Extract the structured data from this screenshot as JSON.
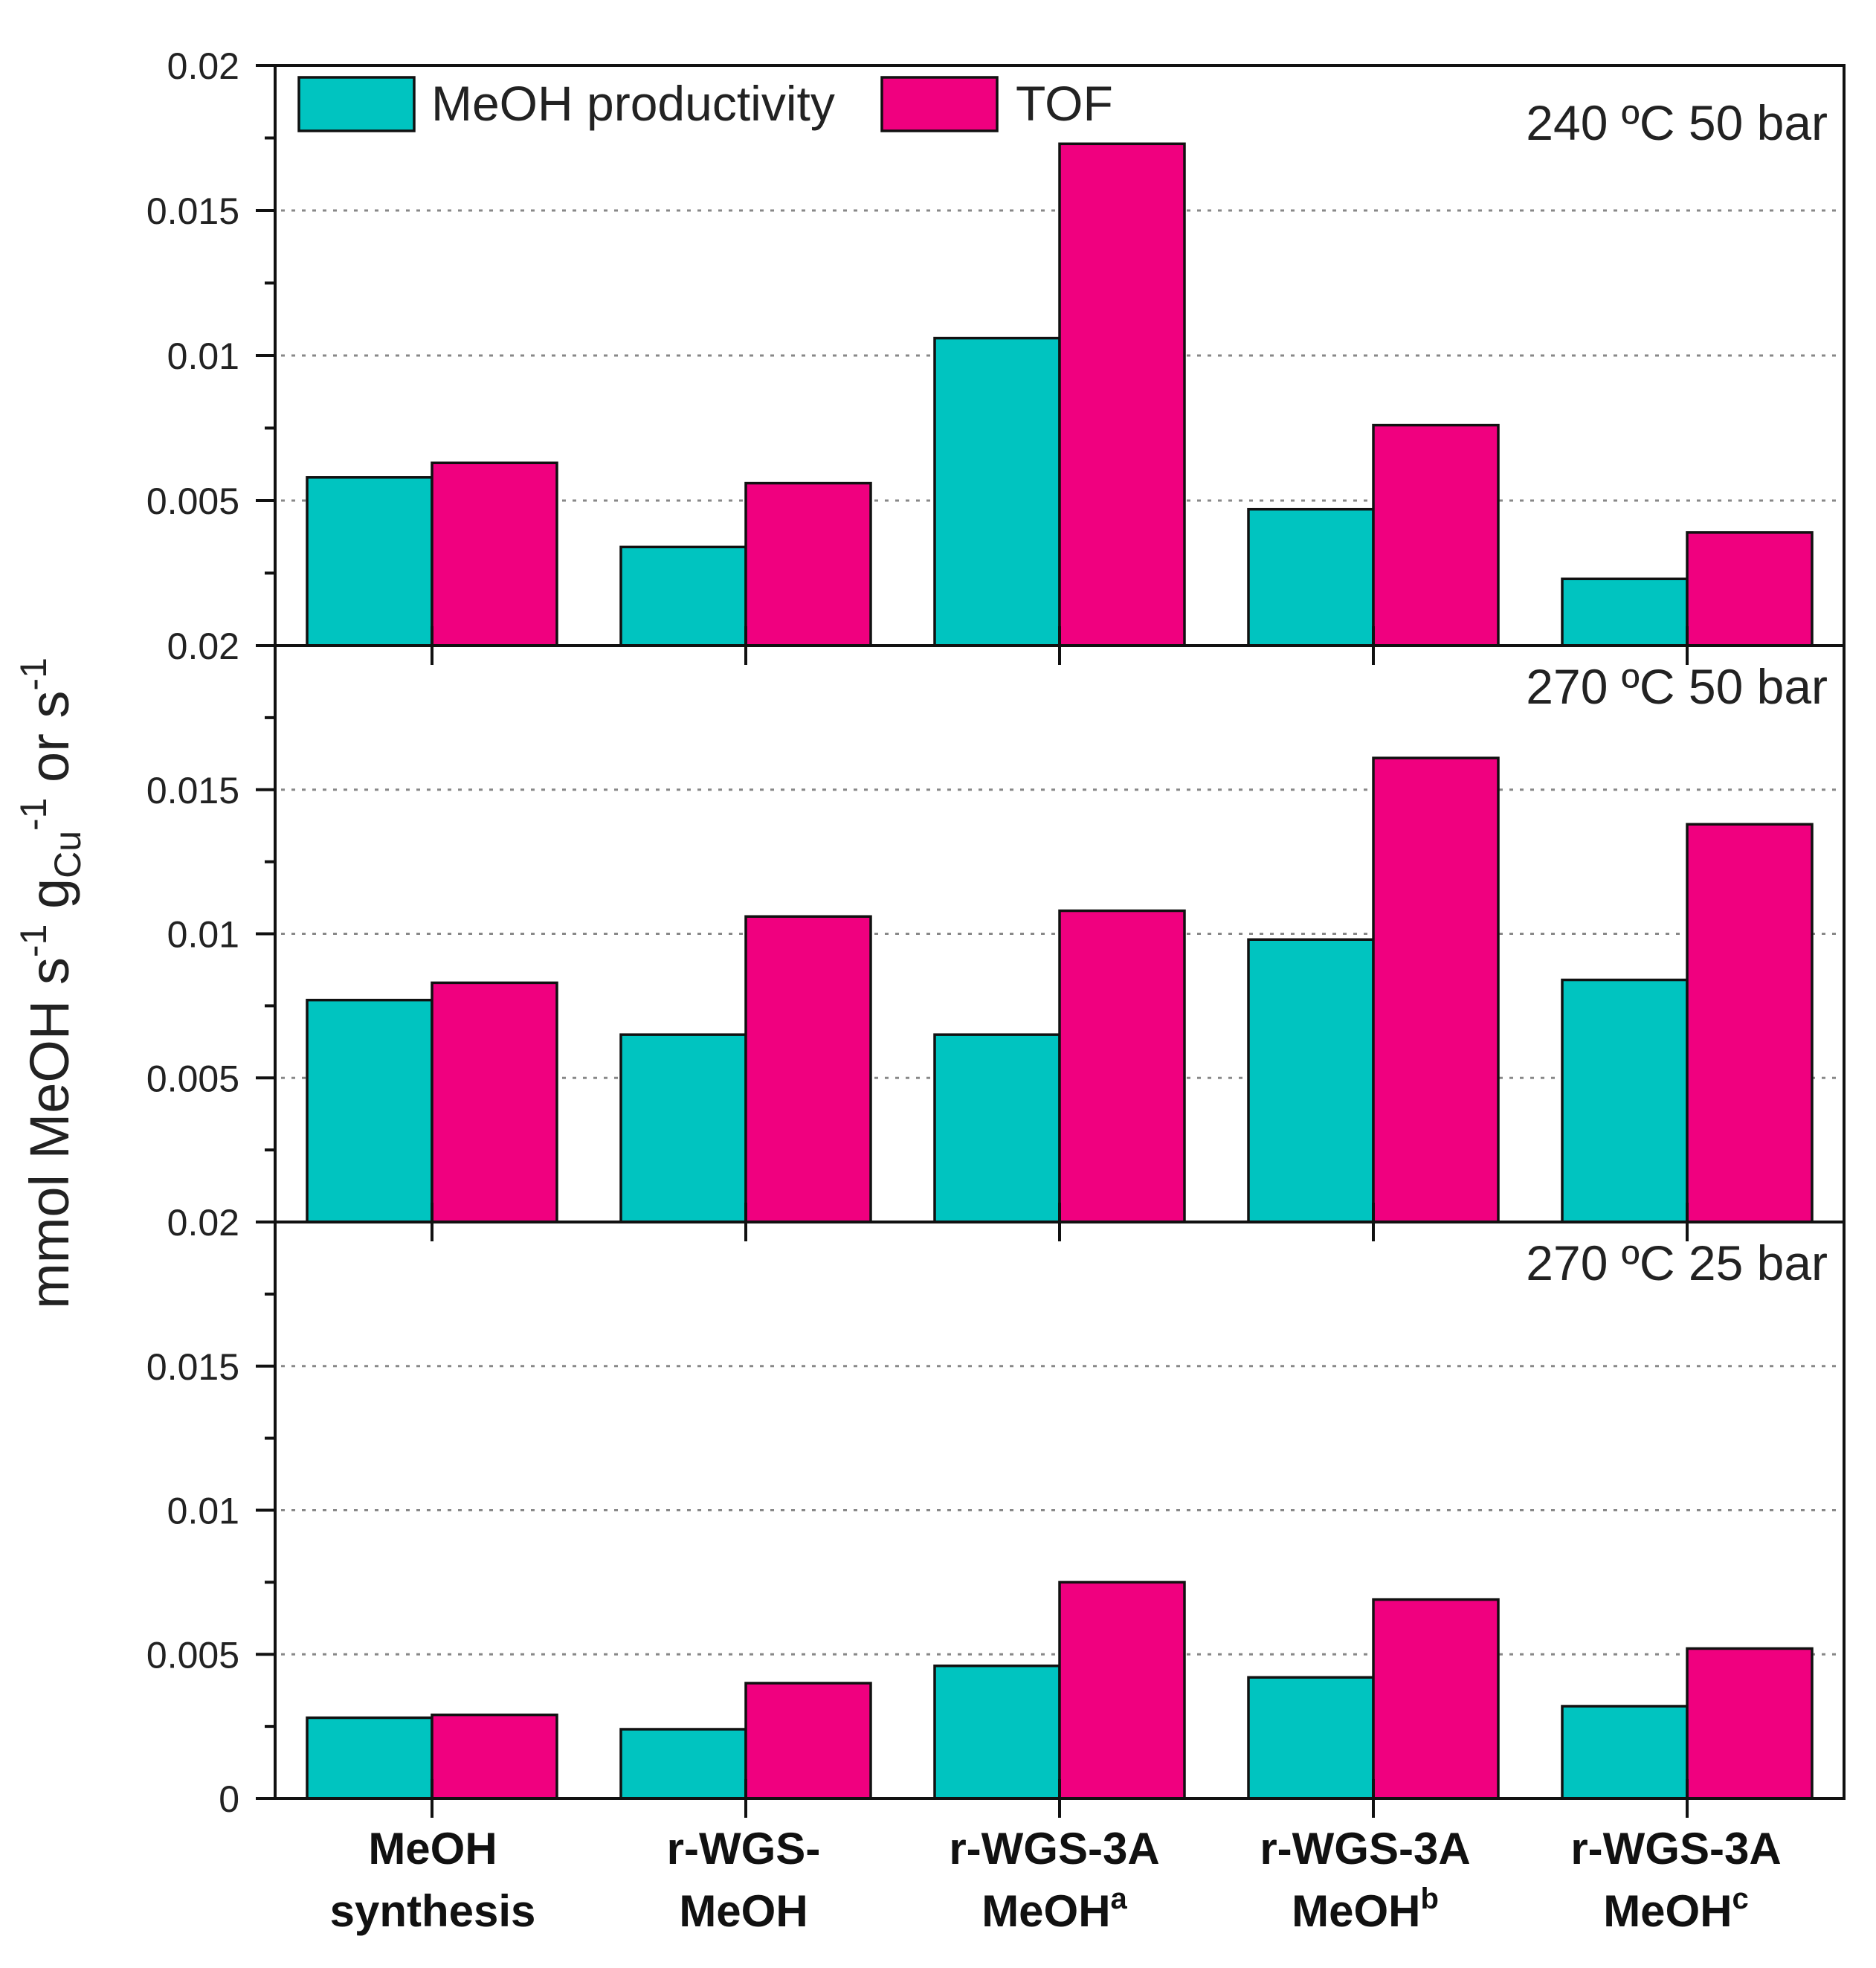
{
  "chart_data": {
    "type": "bar",
    "layout": "three stacked panels sharing x categories",
    "ylabel": {
      "prefix": "mmol MeOH s",
      "sup1": "-1",
      "g": " g",
      "sub": "Cu",
      "sup2": "-1",
      "suffix": " or s",
      "sup3": "-1"
    },
    "categories": [
      {
        "line1": "MeOH",
        "line2": "synthesis",
        "sup": ""
      },
      {
        "line1": "r-WGS-",
        "line2": "MeOH",
        "sup": ""
      },
      {
        "line1": "r-WGS-3A",
        "line2": "MeOH",
        "sup": "a"
      },
      {
        "line1": "r-WGS-3A",
        "line2": "MeOH",
        "sup": "b"
      },
      {
        "line1": "r-WGS-3A",
        "line2": "MeOH",
        "sup": "c"
      }
    ],
    "legend": {
      "position": "top-left",
      "entries": [
        {
          "name": "MeOH productivity",
          "color": "#00c4c0"
        },
        {
          "name": "TOF",
          "color": "#f0007f"
        }
      ]
    },
    "ylim": [
      0,
      0.02
    ],
    "yticks": [
      0,
      0.005,
      0.01,
      0.015,
      0.02
    ],
    "panels": [
      {
        "title": "240 ºC 50 bar",
        "tick_labels": [
          "0.02",
          "0.005",
          "0.01",
          "0.015",
          "0.02"
        ],
        "series": [
          {
            "name": "MeOH productivity",
            "values": [
              0.0058,
              0.0034,
              0.0106,
              0.0047,
              0.0023
            ]
          },
          {
            "name": "TOF",
            "values": [
              0.0063,
              0.0056,
              0.0173,
              0.0076,
              0.0039
            ]
          }
        ]
      },
      {
        "title": "270 ºC 50 bar",
        "tick_labels": [
          "0.02",
          "0.005",
          "0.01",
          "0.015",
          ""
        ],
        "series": [
          {
            "name": "MeOH productivity",
            "values": [
              0.0077,
              0.0065,
              0.0065,
              0.0098,
              0.0084
            ]
          },
          {
            "name": "TOF",
            "values": [
              0.0083,
              0.0106,
              0.0108,
              0.0161,
              0.0138
            ]
          }
        ]
      },
      {
        "title": "270 ºC 25 bar",
        "tick_labels": [
          "0",
          "0.005",
          "0.01",
          "0.015",
          ""
        ],
        "series": [
          {
            "name": "MeOH productivity",
            "values": [
              0.0028,
              0.0024,
              0.0046,
              0.0042,
              0.0032
            ]
          },
          {
            "name": "TOF",
            "values": [
              0.0029,
              0.004,
              0.0075,
              0.0069,
              0.0052
            ]
          }
        ]
      }
    ],
    "grid": "dotted horizontal at major ticks"
  }
}
